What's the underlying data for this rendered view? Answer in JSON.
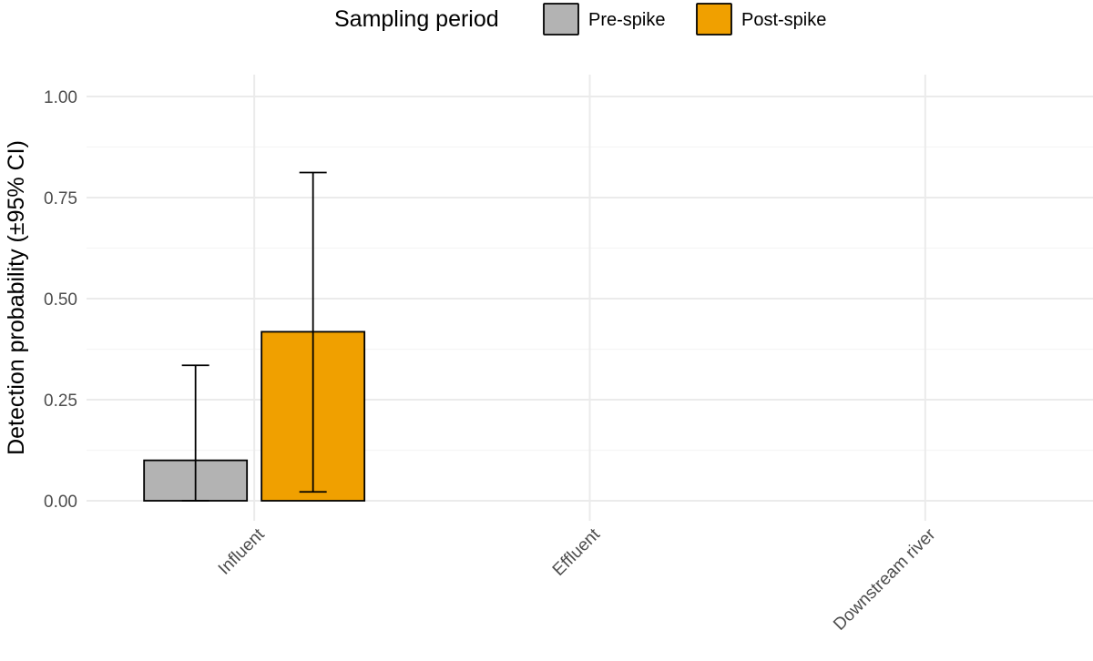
{
  "chart_data": {
    "type": "bar",
    "title": "",
    "xlabel": "",
    "ylabel": "Detection probability (±95% CI)",
    "ylim": [
      0,
      1.0
    ],
    "yticks": [
      "0.00",
      "0.25",
      "0.50",
      "0.75",
      "1.00"
    ],
    "ytick_values": [
      0,
      0.25,
      0.5,
      0.75,
      1.0
    ],
    "categories": [
      "Influent",
      "Effluent",
      "Downstream river"
    ],
    "legend": {
      "title": "Sampling period",
      "position": "top"
    },
    "series": [
      {
        "name": "Pre-spike",
        "color": "#b3b3b3",
        "values": [
          0.1,
          0.0,
          0.0
        ],
        "ci_low": [
          0.0,
          0.0,
          0.0
        ],
        "ci_high": [
          0.335,
          0.0,
          0.0
        ]
      },
      {
        "name": "Post-spike",
        "color": "#f0a000",
        "values": [
          0.418,
          0.0,
          0.0
        ],
        "ci_low": [
          0.022,
          0.0,
          0.0
        ],
        "ci_high": [
          0.812,
          0.0,
          0.0
        ]
      }
    ]
  }
}
